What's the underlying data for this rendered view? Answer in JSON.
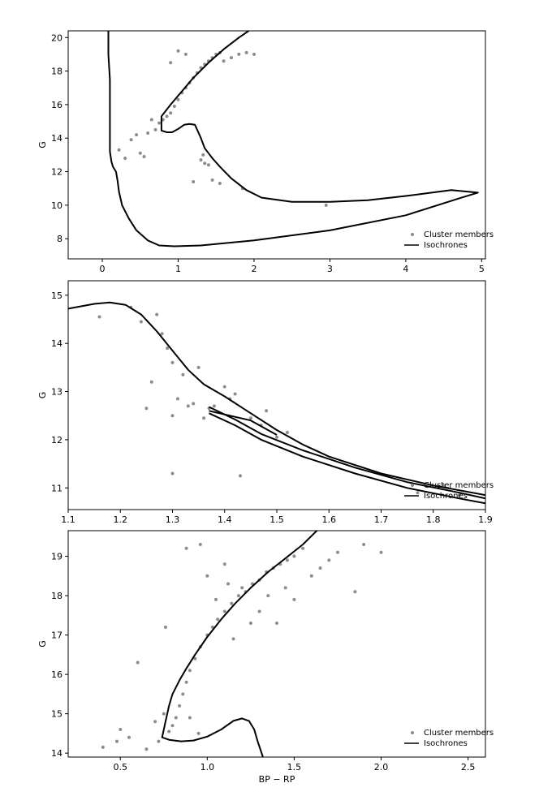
{
  "chart_data": [
    {
      "type": "scatter",
      "title": "",
      "xlabel": "",
      "ylabel": "G",
      "xlim": [
        -0.45,
        5.05
      ],
      "ylim": [
        20.4,
        6.8
      ],
      "y_inverted": true,
      "xticks": [
        0,
        1,
        2,
        3,
        4,
        5
      ],
      "yticks": [
        8,
        10,
        12,
        14,
        16,
        18,
        20
      ],
      "legend": {
        "position": "lower-right",
        "entries": [
          "Cluster members",
          "Isochrones"
        ]
      },
      "colors": {
        "members": "#8c8c8c",
        "isochrone": "#000000"
      },
      "series": [
        {
          "name": "Cluster members",
          "kind": "points",
          "points": [
            [
              0.22,
              13.3
            ],
            [
              0.3,
              12.8
            ],
            [
              0.38,
              13.9
            ],
            [
              0.45,
              14.2
            ],
            [
              0.5,
              13.1
            ],
            [
              0.55,
              12.9
            ],
            [
              0.6,
              14.3
            ],
            [
              0.65,
              15.1
            ],
            [
              0.7,
              14.5
            ],
            [
              0.75,
              14.9
            ],
            [
              0.8,
              15.1
            ],
            [
              0.85,
              15.3
            ],
            [
              0.9,
              15.5
            ],
            [
              0.95,
              15.9
            ],
            [
              1.0,
              16.3
            ],
            [
              1.05,
              16.7
            ],
            [
              1.1,
              17.0
            ],
            [
              1.15,
              17.3
            ],
            [
              1.2,
              17.6
            ],
            [
              1.25,
              17.9
            ],
            [
              1.3,
              18.2
            ],
            [
              1.35,
              18.4
            ],
            [
              1.4,
              18.6
            ],
            [
              1.45,
              18.8
            ],
            [
              1.5,
              19.0
            ],
            [
              1.55,
              19.1
            ],
            [
              1.6,
              18.6
            ],
            [
              1.7,
              18.8
            ],
            [
              1.8,
              19.0
            ],
            [
              1.9,
              19.1
            ],
            [
              2.0,
              19.0
            ],
            [
              1.3,
              12.7
            ],
            [
              1.35,
              12.5
            ],
            [
              1.4,
              12.4
            ],
            [
              1.33,
              13.0
            ],
            [
              1.45,
              11.5
            ],
            [
              1.55,
              11.3
            ],
            [
              1.2,
              11.4
            ],
            [
              0.9,
              18.5
            ],
            [
              1.0,
              19.2
            ],
            [
              1.1,
              19.0
            ],
            [
              2.95,
              10.0
            ],
            [
              1.85,
              11.0
            ]
          ]
        },
        {
          "name": "Isochrones",
          "kind": "line",
          "points": [
            [
              0.08,
              20.4
            ],
            [
              0.08,
              19.0
            ],
            [
              0.1,
              17.5
            ],
            [
              0.1,
              15.0
            ],
            [
              0.1,
              13.2
            ],
            [
              0.12,
              12.6
            ],
            [
              0.14,
              12.3
            ],
            [
              0.18,
              12.0
            ],
            [
              0.2,
              11.5
            ],
            [
              0.22,
              10.8
            ],
            [
              0.26,
              10.0
            ],
            [
              0.35,
              9.2
            ],
            [
              0.45,
              8.5
            ],
            [
              0.6,
              7.9
            ],
            [
              0.75,
              7.6
            ],
            [
              0.95,
              7.55
            ],
            [
              1.3,
              7.6
            ],
            [
              2.0,
              7.9
            ],
            [
              3.0,
              8.5
            ],
            [
              4.0,
              9.4
            ],
            [
              4.7,
              10.4
            ],
            [
              4.95,
              10.75
            ],
            [
              4.6,
              10.9
            ],
            [
              4.0,
              10.55
            ],
            [
              3.5,
              10.3
            ],
            [
              3.0,
              10.2
            ],
            [
              2.5,
              10.2
            ],
            [
              2.1,
              10.45
            ],
            [
              1.9,
              10.9
            ],
            [
              1.7,
              11.6
            ],
            [
              1.55,
              12.3
            ],
            [
              1.45,
              12.8
            ],
            [
              1.4,
              13.1
            ],
            [
              1.35,
              13.4
            ],
            [
              1.3,
              14.0
            ],
            [
              1.25,
              14.5
            ],
            [
              1.22,
              14.8
            ],
            [
              1.15,
              14.85
            ],
            [
              1.08,
              14.8
            ],
            [
              1.0,
              14.55
            ],
            [
              0.92,
              14.35
            ],
            [
              0.85,
              14.35
            ],
            [
              0.78,
              14.45
            ],
            [
              0.78,
              15.3
            ],
            [
              0.9,
              16.0
            ],
            [
              1.05,
              16.8
            ],
            [
              1.2,
              17.6
            ],
            [
              1.4,
              18.5
            ],
            [
              1.6,
              19.3
            ],
            [
              1.8,
              20.0
            ],
            [
              1.93,
              20.4
            ]
          ]
        }
      ]
    },
    {
      "type": "scatter",
      "title": "",
      "xlabel": "",
      "ylabel": "G",
      "xlim": [
        1.1,
        1.9
      ],
      "ylim": [
        15.3,
        10.55
      ],
      "y_inverted": true,
      "xticks": [
        1.1,
        1.2,
        1.3,
        1.4,
        1.5,
        1.6,
        1.7,
        1.8,
        1.9
      ],
      "yticks": [
        11,
        12,
        13,
        14,
        15
      ],
      "legend": {
        "position": "lower-right",
        "entries": [
          "Cluster members",
          "Isochrones"
        ]
      },
      "colors": {
        "members": "#8c8c8c",
        "isochrone": "#000000"
      },
      "series": [
        {
          "name": "Cluster members",
          "kind": "points",
          "points": [
            [
              1.16,
              14.55
            ],
            [
              1.22,
              14.75
            ],
            [
              1.24,
              14.45
            ],
            [
              1.25,
              12.65
            ],
            [
              1.26,
              13.2
            ],
            [
              1.27,
              14.6
            ],
            [
              1.28,
              14.2
            ],
            [
              1.29,
              13.9
            ],
            [
              1.3,
              13.6
            ],
            [
              1.3,
              11.3
            ],
            [
              1.3,
              12.5
            ],
            [
              1.31,
              12.85
            ],
            [
              1.32,
              13.35
            ],
            [
              1.33,
              12.7
            ],
            [
              1.34,
              12.75
            ],
            [
              1.35,
              13.5
            ],
            [
              1.36,
              12.45
            ],
            [
              1.37,
              12.65
            ],
            [
              1.38,
              12.7
            ],
            [
              1.4,
              13.1
            ],
            [
              1.41,
              12.85
            ],
            [
              1.42,
              12.95
            ],
            [
              1.43,
              11.25
            ],
            [
              1.45,
              12.45
            ],
            [
              1.47,
              12.3
            ],
            [
              1.48,
              12.6
            ],
            [
              1.5,
              12.05
            ],
            [
              1.52,
              12.15
            ],
            [
              1.77,
              10.9
            ],
            [
              1.82,
              11.05
            ],
            [
              1.85,
              10.85
            ]
          ]
        },
        {
          "name": "Isochrones",
          "kind": "line",
          "points": [
            [
              1.1,
              14.72
            ],
            [
              1.15,
              14.82
            ],
            [
              1.18,
              14.85
            ],
            [
              1.21,
              14.8
            ],
            [
              1.24,
              14.6
            ],
            [
              1.27,
              14.25
            ],
            [
              1.3,
              13.85
            ],
            [
              1.33,
              13.45
            ],
            [
              1.36,
              13.15
            ],
            [
              1.4,
              12.9
            ],
            [
              1.45,
              12.55
            ],
            [
              1.5,
              12.2
            ],
            [
              1.55,
              11.9
            ],
            [
              1.6,
              11.65
            ],
            [
              1.7,
              11.3
            ],
            [
              1.8,
              11.05
            ],
            [
              1.9,
              10.85
            ]
          ]
        },
        {
          "name": "Isochrones",
          "kind": "line",
          "points": [
            [
              1.37,
              12.55
            ],
            [
              1.42,
              12.3
            ],
            [
              1.47,
              12.0
            ],
            [
              1.55,
              11.65
            ],
            [
              1.65,
              11.3
            ],
            [
              1.75,
              11.0
            ],
            [
              1.85,
              10.78
            ],
            [
              1.9,
              10.68
            ]
          ]
        },
        {
          "name": "Isochrones",
          "kind": "line",
          "points": [
            [
              1.37,
              12.68
            ],
            [
              1.42,
              12.42
            ],
            [
              1.47,
              12.12
            ],
            [
              1.55,
              11.78
            ],
            [
              1.65,
              11.42
            ],
            [
              1.75,
              11.12
            ],
            [
              1.85,
              10.9
            ],
            [
              1.9,
              10.78
            ]
          ]
        },
        {
          "name": "Isochrones",
          "kind": "line",
          "points": [
            [
              1.37,
              12.6
            ],
            [
              1.45,
              12.4
            ],
            [
              1.5,
              12.1
            ]
          ]
        }
      ]
    },
    {
      "type": "scatter",
      "title": "",
      "xlabel": "BP − RP",
      "ylabel": "G",
      "xlim": [
        0.2,
        2.6
      ],
      "ylim": [
        19.65,
        13.9
      ],
      "y_inverted": true,
      "xticks": [
        0.5,
        1.0,
        1.5,
        2.0,
        2.5
      ],
      "yticks": [
        14,
        15,
        16,
        17,
        18,
        19
      ],
      "legend": {
        "position": "lower-right",
        "entries": [
          "Cluster members",
          "Isochrones"
        ]
      },
      "colors": {
        "members": "#8c8c8c",
        "isochrone": "#000000"
      },
      "series": [
        {
          "name": "Cluster members",
          "kind": "points",
          "points": [
            [
              0.4,
              14.15
            ],
            [
              0.48,
              14.3
            ],
            [
              0.5,
              14.6
            ],
            [
              0.55,
              14.4
            ],
            [
              0.6,
              16.3
            ],
            [
              0.65,
              14.1
            ],
            [
              0.7,
              14.8
            ],
            [
              0.72,
              14.3
            ],
            [
              0.75,
              15.0
            ],
            [
              0.78,
              14.55
            ],
            [
              0.8,
              14.7
            ],
            [
              0.82,
              14.9
            ],
            [
              0.84,
              15.2
            ],
            [
              0.86,
              15.5
            ],
            [
              0.88,
              15.8
            ],
            [
              0.9,
              16.1
            ],
            [
              0.93,
              16.4
            ],
            [
              0.96,
              16.7
            ],
            [
              1.0,
              17.0
            ],
            [
              1.03,
              17.2
            ],
            [
              1.06,
              17.4
            ],
            [
              1.1,
              17.6
            ],
            [
              1.14,
              17.8
            ],
            [
              1.18,
              18.0
            ],
            [
              1.22,
              18.1
            ],
            [
              1.26,
              18.3
            ],
            [
              1.3,
              18.4
            ],
            [
              1.34,
              18.6
            ],
            [
              1.38,
              18.7
            ],
            [
              1.42,
              18.8
            ],
            [
              1.46,
              18.9
            ],
            [
              1.5,
              19.0
            ],
            [
              1.55,
              19.2
            ],
            [
              1.6,
              18.5
            ],
            [
              1.65,
              18.7
            ],
            [
              1.7,
              18.9
            ],
            [
              1.75,
              19.1
            ],
            [
              1.85,
              18.1
            ],
            [
              1.9,
              19.3
            ],
            [
              2.0,
              19.1
            ],
            [
              1.0,
              18.5
            ],
            [
              1.1,
              18.8
            ],
            [
              1.2,
              18.2
            ],
            [
              1.3,
              17.6
            ],
            [
              1.4,
              17.3
            ],
            [
              1.5,
              17.9
            ],
            [
              0.88,
              19.2
            ],
            [
              0.96,
              19.3
            ],
            [
              1.05,
              17.9
            ],
            [
              1.15,
              16.9
            ],
            [
              1.25,
              17.3
            ],
            [
              1.35,
              18.0
            ],
            [
              1.45,
              18.2
            ],
            [
              0.76,
              17.2
            ],
            [
              0.95,
              14.5
            ],
            [
              0.9,
              14.9
            ],
            [
              1.12,
              18.3
            ]
          ]
        },
        {
          "name": "Isochrones",
          "kind": "line",
          "points": [
            [
              1.32,
              13.9
            ],
            [
              1.29,
              14.3
            ],
            [
              1.27,
              14.6
            ],
            [
              1.24,
              14.82
            ],
            [
              1.2,
              14.88
            ],
            [
              1.15,
              14.82
            ],
            [
              1.08,
              14.6
            ],
            [
              1.0,
              14.42
            ],
            [
              0.92,
              14.32
            ],
            [
              0.85,
              14.3
            ],
            [
              0.78,
              14.34
            ],
            [
              0.74,
              14.4
            ],
            [
              0.76,
              14.8
            ],
            [
              0.78,
              15.2
            ],
            [
              0.8,
              15.5
            ],
            [
              0.84,
              15.85
            ],
            [
              0.88,
              16.15
            ],
            [
              0.93,
              16.5
            ],
            [
              1.0,
              16.95
            ],
            [
              1.08,
              17.4
            ],
            [
              1.16,
              17.8
            ],
            [
              1.25,
              18.2
            ],
            [
              1.35,
              18.6
            ],
            [
              1.45,
              18.95
            ],
            [
              1.55,
              19.3
            ],
            [
              1.63,
              19.65
            ]
          ]
        }
      ]
    }
  ]
}
